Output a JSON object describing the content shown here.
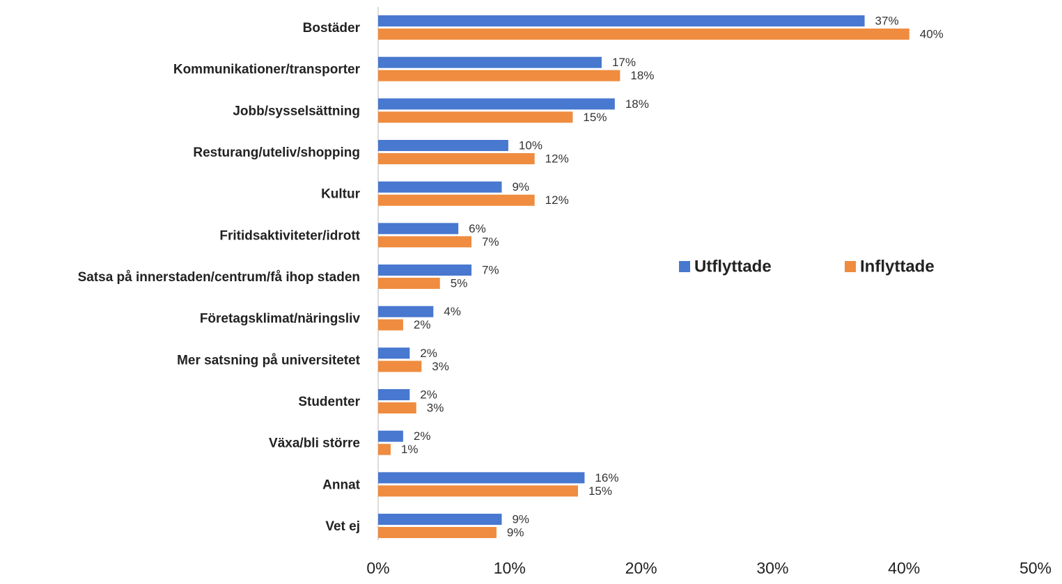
{
  "chart_data": {
    "type": "bar",
    "orientation": "horizontal",
    "categories": [
      "Bostäder",
      "Kommunikationer/transporter",
      "Jobb/sysselsättning",
      "Resturang/uteliv/shopping",
      "Kultur",
      "Fritidsaktiviteter/idrott",
      "Satsa på innerstaden/centrum/få ihop staden",
      "Företagsklimat/näringsliv",
      "Mer satsning på universitetet",
      "Studenter",
      "Växa/bli större",
      "Annat",
      "Vet ej"
    ],
    "series": [
      {
        "name": "Utflyttade",
        "color": "#4878cf",
        "values": [
          37.0,
          17.0,
          18.0,
          9.9,
          9.4,
          6.1,
          7.1,
          4.2,
          2.4,
          2.4,
          1.9,
          15.7,
          9.4
        ],
        "value_labels": [
          "37%",
          "17%",
          "18%",
          "10%",
          "9%",
          "6%",
          "7%",
          "4%",
          "2%",
          "2%",
          "2%",
          "16%",
          "9%"
        ]
      },
      {
        "name": "Inflyttade",
        "color": "#ef8c3f",
        "values": [
          40.4,
          18.4,
          14.8,
          11.9,
          11.9,
          7.1,
          4.7,
          1.9,
          3.3,
          2.9,
          0.95,
          15.2,
          9.0
        ],
        "value_labels": [
          "40%",
          "18%",
          "15%",
          "12%",
          "12%",
          "7%",
          "5%",
          "2%",
          "3%",
          "3%",
          "1%",
          "15%",
          "9%"
        ]
      }
    ],
    "xlim": [
      0,
      50
    ],
    "xticks": [
      {
        "value": 0,
        "label": "0%"
      },
      {
        "value": 10,
        "label": "10%"
      },
      {
        "value": 20,
        "label": "20%"
      },
      {
        "value": 30,
        "label": "30%"
      },
      {
        "value": 40,
        "label": "40%"
      },
      {
        "value": 50,
        "label": "50%"
      }
    ],
    "grid": false,
    "legend": "right"
  }
}
